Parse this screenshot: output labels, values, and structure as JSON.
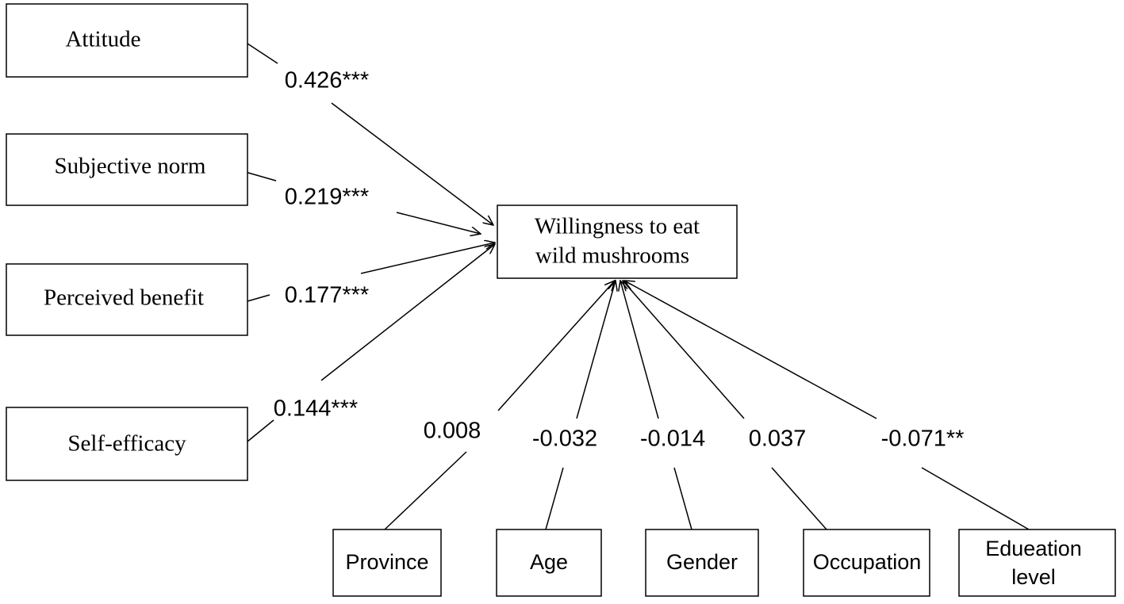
{
  "nodes": [
    {
      "label": "Attitude"
    },
    {
      "label": "Subjective norm"
    },
    {
      "label": "Perceived benefit"
    },
    {
      "label": "Self-efficacy"
    },
    {
      "label": [
        "Willingness to eat",
        "wild mushrooms"
      ]
    },
    {
      "label": "Province"
    },
    {
      "label": "Age"
    },
    {
      "label": "Gender"
    },
    {
      "label": "Occupation"
    },
    {
      "label": [
        "Edueation",
        "level"
      ]
    }
  ],
  "edges": [
    {
      "label": "0.426***"
    },
    {
      "label": "0.219***"
    },
    {
      "label": "0.177***"
    },
    {
      "label": "0.144***"
    },
    {
      "label": "0.008"
    },
    {
      "label": "-0.032"
    },
    {
      "label": "-0.014"
    },
    {
      "label": "0.037"
    },
    {
      "label": "-0.071**"
    }
  ]
}
